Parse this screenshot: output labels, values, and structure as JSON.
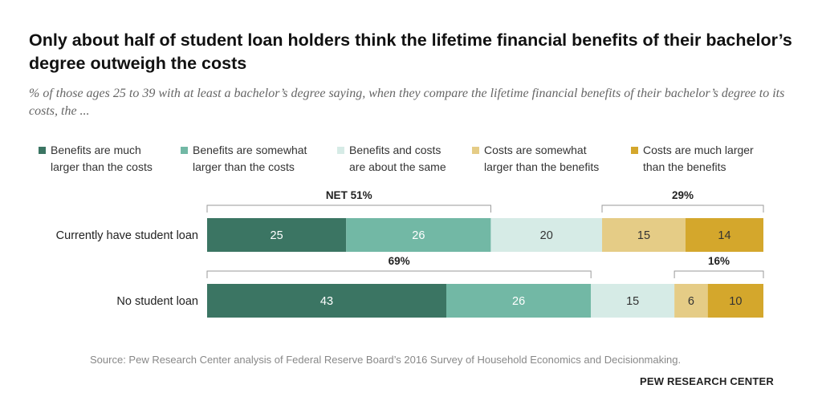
{
  "colors": {
    "much_larger_benefits": "#3b7563",
    "somewhat_larger_benefits": "#72b8a5",
    "about_same": "#d6ebe6",
    "somewhat_larger_costs": "#e5cc86",
    "much_larger_costs": "#d4a72c"
  },
  "legend": [
    {
      "line1": "Benefits are much",
      "line2": "larger than the costs",
      "color_key": "much_larger_benefits"
    },
    {
      "line1": "Benefits are somewhat",
      "line2": "larger than the costs",
      "color_key": "somewhat_larger_benefits"
    },
    {
      "line1": "Benefits and costs",
      "line2": "are about the same",
      "color_key": "about_same"
    },
    {
      "line1": "Costs are somewhat",
      "line2": "larger than the benefits",
      "color_key": "somewhat_larger_costs"
    },
    {
      "line1": "Costs are much larger",
      "line2": "than the benefits",
      "color_key": "much_larger_costs"
    }
  ],
  "chart_data": {
    "type": "bar",
    "orientation": "horizontal-stacked",
    "title": "Only about half of student loan holders think the lifetime financial benefits of their bachelor’s degree outweigh the costs",
    "subtitle": "% of those ages 25 to 39 with at least a bachelor’s degree saying, when they compare the lifetime financial benefits of their bachelor’s degree to its costs, the ...",
    "categories": [
      "Currently have student loan",
      "No student loan"
    ],
    "series": [
      {
        "name": "Benefits are much larger than the costs",
        "values": [
          25,
          43
        ],
        "color_key": "much_larger_benefits"
      },
      {
        "name": "Benefits are somewhat larger than the costs",
        "values": [
          26,
          26
        ],
        "color_key": "somewhat_larger_benefits"
      },
      {
        "name": "Benefits and costs are about the same",
        "values": [
          20,
          15
        ],
        "color_key": "about_same"
      },
      {
        "name": "Costs are somewhat larger than the benefits",
        "values": [
          15,
          6
        ],
        "color_key": "somewhat_larger_costs"
      },
      {
        "name": "Costs are much larger than the benefits",
        "values": [
          14,
          10
        ],
        "color_key": "much_larger_costs"
      }
    ],
    "nets": [
      {
        "benefits_label": "NET 51%",
        "costs_label": "29%"
      },
      {
        "benefits_label": "69%",
        "costs_label": "16%"
      }
    ],
    "source": "Source: Pew Research Center analysis of Federal Reserve Board’s 2016 Survey of Household Economics and Decisionmaking.",
    "brand": "PEW RESEARCH CENTER",
    "legend_position": "top"
  }
}
